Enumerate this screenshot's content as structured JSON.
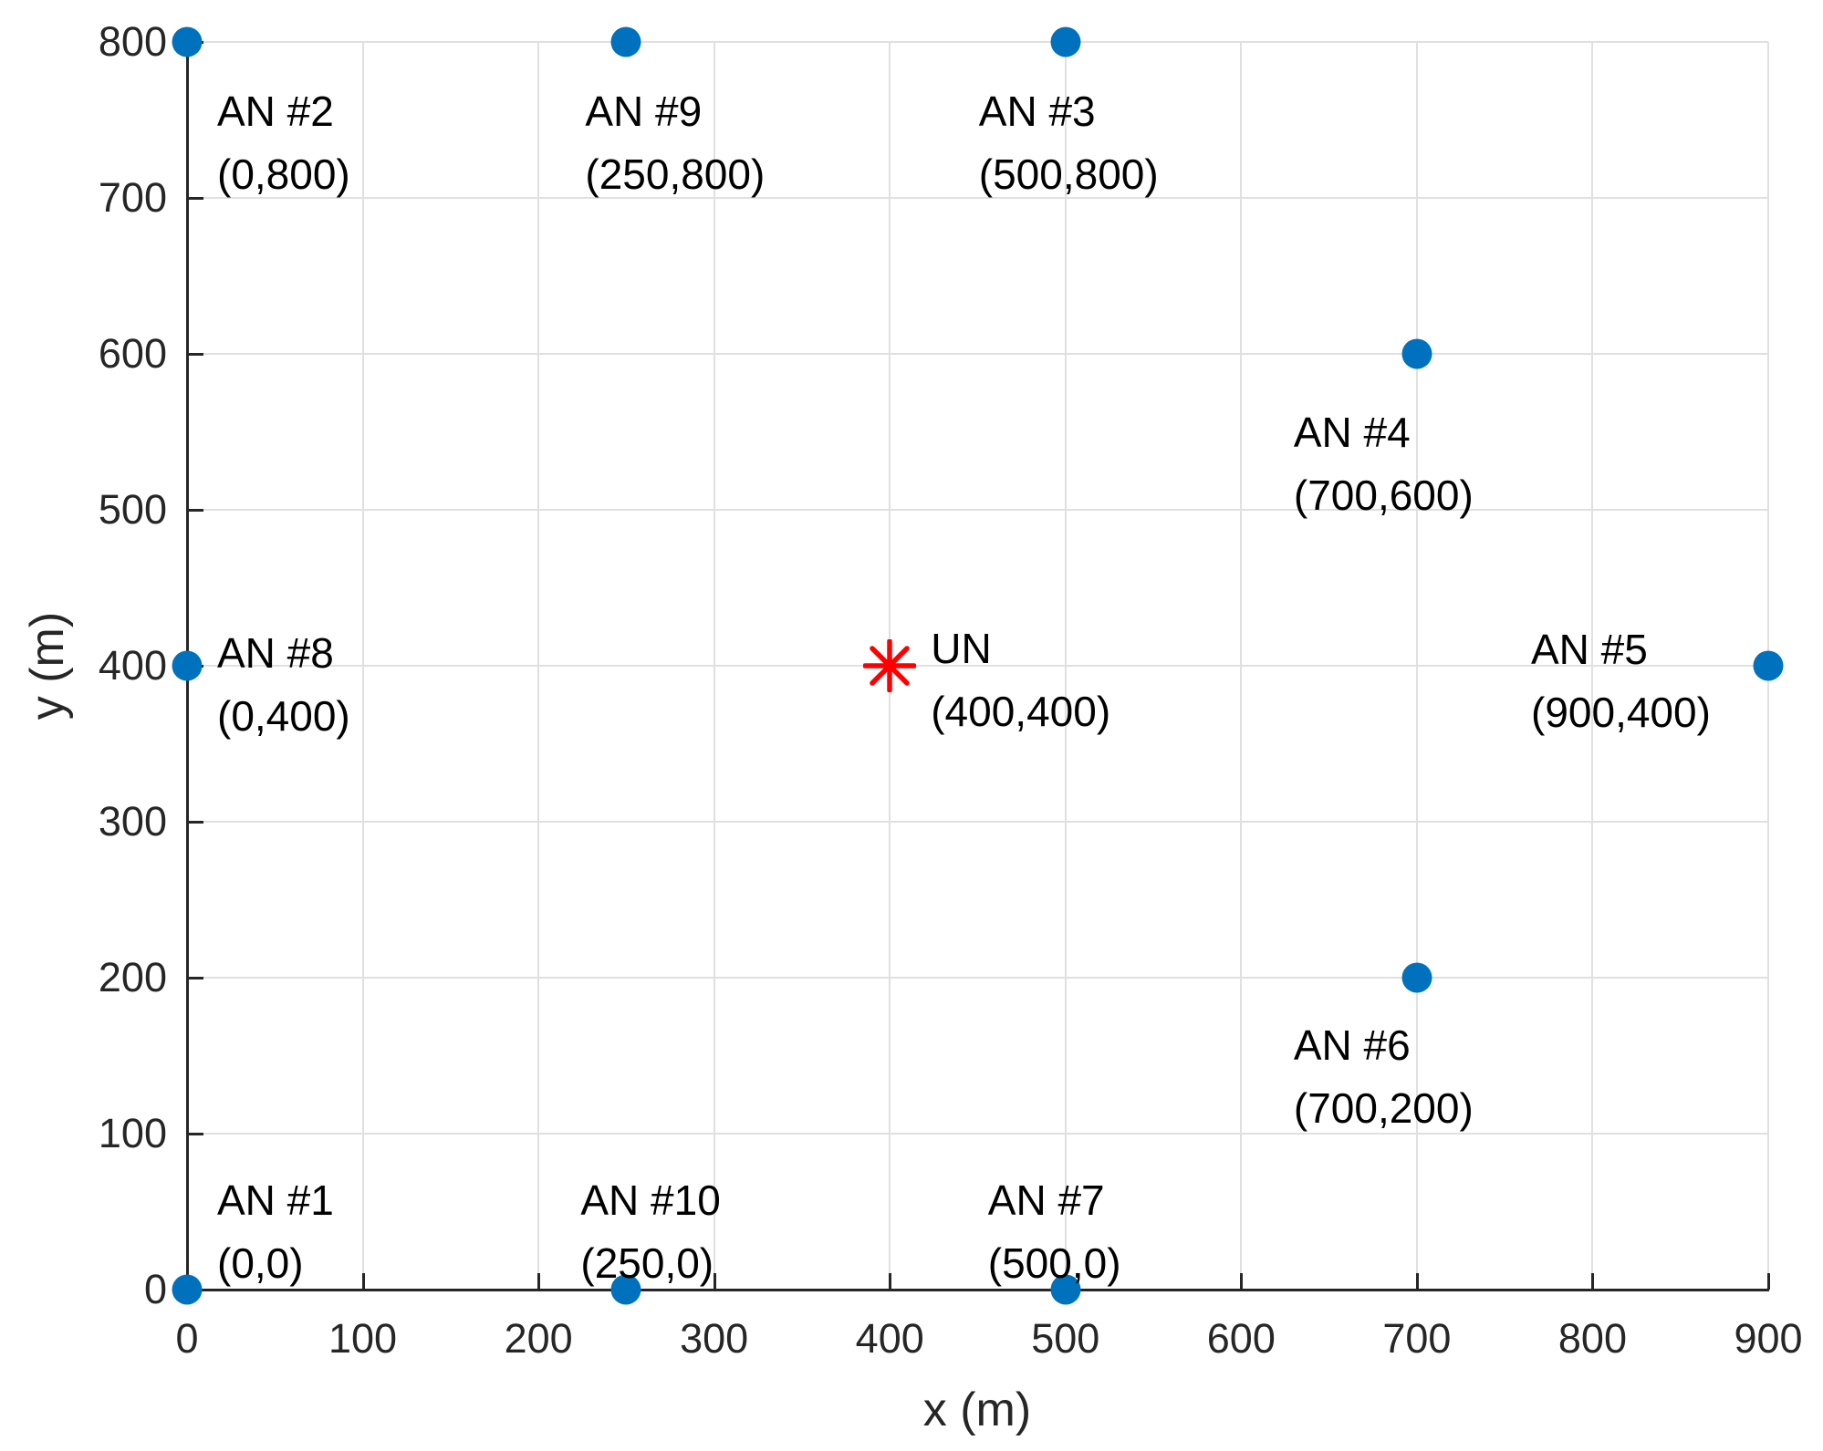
{
  "figure": {
    "xlabel": "x (m)",
    "ylabel": "y (m)"
  },
  "colors": {
    "anchor_marker": "#0072BD",
    "unknown_marker": "#ff0000",
    "grid": "#e0e0e0",
    "axis": "#262626",
    "annotation_text": "#000000",
    "background": "#ffffff"
  },
  "chart_data": {
    "type": "scatter",
    "title": "",
    "xlabel": "x (m)",
    "ylabel": "y (m)",
    "xlim": [
      0,
      900
    ],
    "ylim": [
      0,
      800
    ],
    "grid": true,
    "legend_position": "none",
    "x_ticks": [
      0,
      100,
      200,
      300,
      400,
      500,
      600,
      700,
      800,
      900
    ],
    "y_ticks": [
      0,
      100,
      200,
      300,
      400,
      500,
      600,
      700,
      800
    ],
    "series": [
      {
        "name": "anchor-nodes",
        "marker": "filled-circle",
        "color": "#0072BD",
        "points": [
          {
            "label": "AN #1",
            "coord_label": "(0,0)",
            "x": 0,
            "y": 0,
            "label_dx": 33,
            "label_dy": -132
          },
          {
            "label": "AN #2",
            "coord_label": "(0,800)",
            "x": 0,
            "y": 800,
            "label_dx": 33,
            "label_dy": 42
          },
          {
            "label": "AN #3",
            "coord_label": "(500,800)",
            "x": 500,
            "y": 800,
            "label_dx": -95,
            "label_dy": 42
          },
          {
            "label": "AN #4",
            "coord_label": "(700,600)",
            "x": 700,
            "y": 600,
            "label_dx": -135,
            "label_dy": 52
          },
          {
            "label": "AN #5",
            "coord_label": "(900,400)",
            "x": 900,
            "y": 400,
            "label_dx": -260,
            "label_dy": -52
          },
          {
            "label": "AN #6",
            "coord_label": "(700,200)",
            "x": 700,
            "y": 200,
            "label_dx": -135,
            "label_dy": 40
          },
          {
            "label": "AN #7",
            "coord_label": "(500,0)",
            "x": 500,
            "y": 0,
            "label_dx": -85,
            "label_dy": -132
          },
          {
            "label": "AN #8",
            "coord_label": "(0,400)",
            "x": 0,
            "y": 400,
            "label_dx": 33,
            "label_dy": -48
          },
          {
            "label": "AN #9",
            "coord_label": "(250,800)",
            "x": 250,
            "y": 800,
            "label_dx": -45,
            "label_dy": 42
          },
          {
            "label": "AN #10",
            "coord_label": "(250,0)",
            "x": 250,
            "y": 0,
            "label_dx": -50,
            "label_dy": -132
          }
        ]
      },
      {
        "name": "unknown-node",
        "marker": "asterisk",
        "color": "#ff0000",
        "points": [
          {
            "label": "UN",
            "coord_label": "(400,400)",
            "x": 400,
            "y": 400,
            "label_dx": 45,
            "label_dy": -53
          }
        ]
      }
    ]
  }
}
